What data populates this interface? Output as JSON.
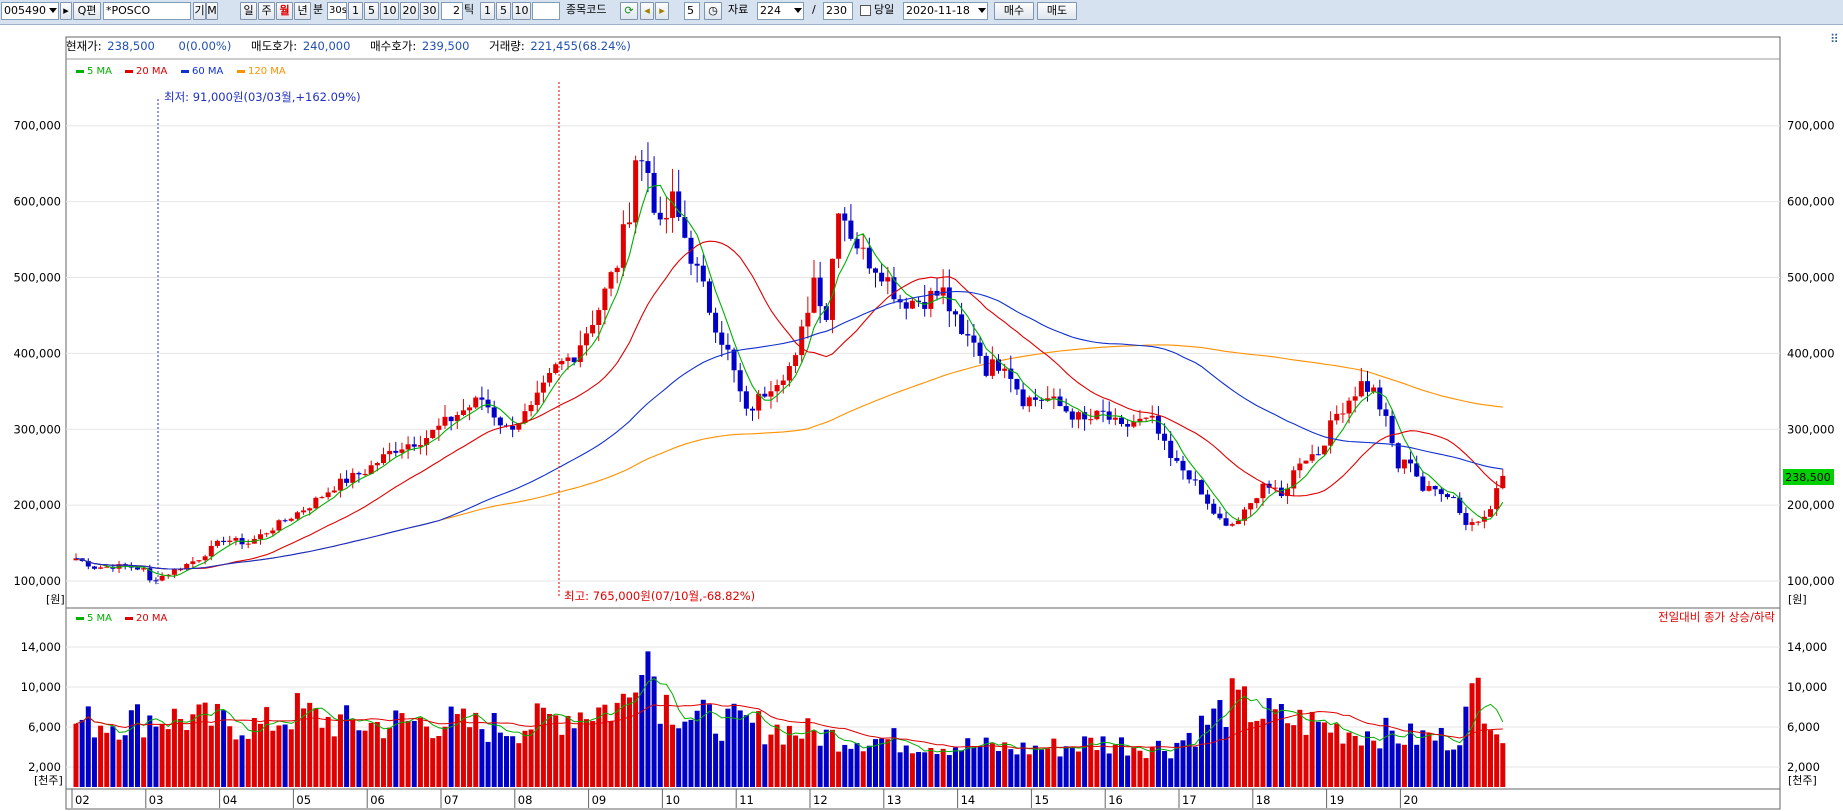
{
  "toolbar": {
    "code": "005490",
    "search_label": "Q편",
    "name": "*POSCO",
    "btn_gi": "기",
    "btn_m": "M",
    "periods": [
      "일",
      "주",
      "월",
      "년"
    ],
    "active_period": "월",
    "minute_label": "분",
    "minute_field": "30s",
    "minute_buttons": [
      "1",
      "5",
      "10",
      "20",
      "30"
    ],
    "tick_field": "2",
    "tick_label": "틱",
    "tick_buttons": [
      "1",
      "5",
      "10"
    ],
    "code_input_label": "종목코드",
    "step_field": "5",
    "data_label": "자료",
    "data_count": "224",
    "slash": "/",
    "data_total": "230",
    "same_day_label": "당일",
    "date": "2020-11-18",
    "buy_button": "매수",
    "sell_button": "매도"
  },
  "summary": {
    "current_price_label": "현재가:",
    "current_price": "238,500",
    "change": "0(0.00%)",
    "ask_label": "매도호가:",
    "ask": "240,000",
    "bid_label": "매수호가:",
    "bid": "239,500",
    "volume_label": "거래량:",
    "volume": "221,455(68.24%)"
  },
  "price_panel": {
    "ma_legend": [
      {
        "name": "5 MA",
        "color": "#00b000"
      },
      {
        "name": "20 MA",
        "color": "#e00000"
      },
      {
        "name": "60 MA",
        "color": "#1030d0"
      },
      {
        "name": "120 MA",
        "color": "#ff9000"
      }
    ],
    "y_ticks": [
      "700,000",
      "600,000",
      "500,000",
      "400,000",
      "300,000",
      "200,000",
      "100,000"
    ],
    "unit": "[원]",
    "current_tag": "238,500",
    "low_note": "최저: 91,000원(03/03월,+162.09%)",
    "high_note": "최고: 765,000원(07/10월,-68.82%)"
  },
  "volume_panel": {
    "ma_legend": [
      {
        "name": "5 MA",
        "color": "#00b000"
      },
      {
        "name": "20 MA",
        "color": "#e00000"
      }
    ],
    "y_ticks": [
      "14,000",
      "10,000",
      "6,000",
      "2,000"
    ],
    "unit": "[천주]",
    "note": "전일대비 종가 상승/하락"
  },
  "colors": {
    "up": "#e00000",
    "down": "#0000c8",
    "ma5": "#00b000",
    "ma20": "#e00000",
    "ma60": "#1030d0",
    "ma120": "#ff9000",
    "price_tag": "#00d000"
  },
  "chart_data": {
    "type": "candlestick",
    "x_labels": [
      "02",
      "03",
      "04",
      "05",
      "06",
      "07",
      "08",
      "09",
      "10",
      "11",
      "12",
      "13",
      "14",
      "15",
      "16",
      "17",
      "18",
      "19",
      "20"
    ],
    "price_ylim": [
      75000,
      780000
    ],
    "volume_ylim": [
      0,
      17500
    ],
    "price_anchors": [
      [
        0,
        130000
      ],
      [
        3,
        118000
      ],
      [
        8,
        120000
      ],
      [
        11,
        115000
      ],
      [
        12,
        100000
      ],
      [
        15,
        110000
      ],
      [
        20,
        130000
      ],
      [
        24,
        155000
      ],
      [
        28,
        150000
      ],
      [
        33,
        175000
      ],
      [
        38,
        200000
      ],
      [
        42,
        225000
      ],
      [
        47,
        245000
      ],
      [
        52,
        275000
      ],
      [
        57,
        290000
      ],
      [
        62,
        320000
      ],
      [
        66,
        340000
      ],
      [
        70,
        300000
      ],
      [
        74,
        325000
      ],
      [
        78,
        380000
      ],
      [
        81,
        400000
      ],
      [
        85,
        460000
      ],
      [
        88,
        520000
      ],
      [
        90,
        590000
      ],
      [
        91,
        660000
      ],
      [
        93,
        640000
      ],
      [
        95,
        560000
      ],
      [
        97,
        600000
      ],
      [
        100,
        530000
      ],
      [
        103,
        460000
      ],
      [
        106,
        400000
      ],
      [
        109,
        320000
      ],
      [
        113,
        360000
      ],
      [
        117,
        390000
      ],
      [
        120,
        500000
      ],
      [
        122,
        450000
      ],
      [
        124,
        600000
      ],
      [
        126,
        560000
      ],
      [
        128,
        530000
      ],
      [
        131,
        510000
      ],
      [
        134,
        470000
      ],
      [
        137,
        470000
      ],
      [
        141,
        480000
      ],
      [
        144,
        420000
      ],
      [
        146,
        420000
      ],
      [
        148,
        380000
      ],
      [
        151,
        390000
      ],
      [
        154,
        340000
      ],
      [
        158,
        340000
      ],
      [
        162,
        320000
      ],
      [
        164,
        310000
      ],
      [
        167,
        320000
      ],
      [
        170,
        300000
      ],
      [
        172,
        310000
      ],
      [
        175,
        310000
      ],
      [
        178,
        260000
      ],
      [
        181,
        240000
      ],
      [
        184,
        200000
      ],
      [
        187,
        170000
      ],
      [
        189,
        180000
      ],
      [
        191,
        200000
      ],
      [
        193,
        230000
      ],
      [
        196,
        210000
      ],
      [
        199,
        260000
      ],
      [
        202,
        270000
      ],
      [
        205,
        320000
      ],
      [
        207,
        340000
      ],
      [
        209,
        360000
      ],
      [
        211,
        350000
      ],
      [
        213,
        310000
      ],
      [
        215,
        250000
      ],
      [
        217,
        260000
      ],
      [
        219,
        220000
      ],
      [
        222,
        220000
      ],
      [
        224,
        210000
      ],
      [
        226,
        175000
      ],
      [
        228,
        180000
      ],
      [
        230,
        200000
      ],
      [
        232,
        238500
      ]
    ],
    "volume_anchors": [
      [
        0,
        6500
      ],
      [
        6,
        6500
      ],
      [
        12,
        7000
      ],
      [
        18,
        6800
      ],
      [
        24,
        6500
      ],
      [
        30,
        6000
      ],
      [
        36,
        7500
      ],
      [
        42,
        6500
      ],
      [
        48,
        6200
      ],
      [
        54,
        6500
      ],
      [
        60,
        6500
      ],
      [
        66,
        6000
      ],
      [
        72,
        6000
      ],
      [
        78,
        7000
      ],
      [
        84,
        7800
      ],
      [
        88,
        8000
      ],
      [
        90,
        9000
      ],
      [
        92,
        16000
      ],
      [
        95,
        9000
      ],
      [
        100,
        7000
      ],
      [
        106,
        6500
      ],
      [
        112,
        6000
      ],
      [
        118,
        5500
      ],
      [
        124,
        5000
      ],
      [
        130,
        4800
      ],
      [
        136,
        4500
      ],
      [
        142,
        4200
      ],
      [
        148,
        4000
      ],
      [
        154,
        3800
      ],
      [
        160,
        4000
      ],
      [
        166,
        4500
      ],
      [
        172,
        4200
      ],
      [
        178,
        4000
      ],
      [
        184,
        6500
      ],
      [
        188,
        8500
      ],
      [
        192,
        7500
      ],
      [
        196,
        6800
      ],
      [
        200,
        6500
      ],
      [
        204,
        6000
      ],
      [
        208,
        5500
      ],
      [
        212,
        5500
      ],
      [
        216,
        5000
      ],
      [
        220,
        5000
      ],
      [
        224,
        4800
      ],
      [
        226,
        7000
      ],
      [
        228,
        10000
      ],
      [
        230,
        8000
      ],
      [
        232,
        5000
      ]
    ],
    "ma_windows": [
      5,
      20,
      60,
      120
    ],
    "volume_ma_windows": [
      5,
      20
    ]
  }
}
